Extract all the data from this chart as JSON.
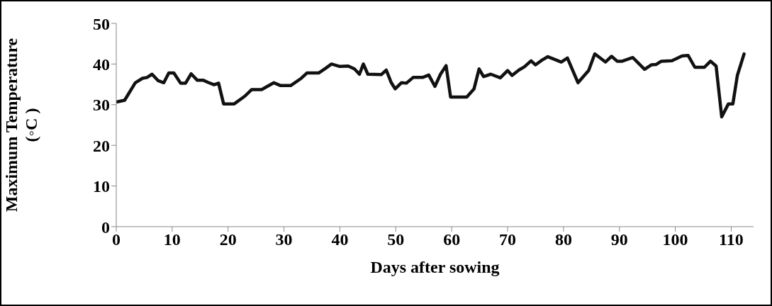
{
  "chart_data": {
    "type": "line",
    "xlabel": "Days after sowing",
    "ylabel": "Maximum Temperature (◦C )",
    "x": [
      0.2,
      1.5,
      3.4,
      4.7,
      5.5,
      6.4,
      7.5,
      8.5,
      9.4,
      10.3,
      11.5,
      12.4,
      13.4,
      14.5,
      15.6,
      16.4,
      17.5,
      18.3,
      19.2,
      21.1,
      23,
      24.2,
      26,
      28.2,
      29.4,
      31.2,
      33.1,
      34.1,
      36.2,
      37.5,
      38.5,
      40,
      41.5,
      42.6,
      43.5,
      44.2,
      45,
      47.4,
      48.3,
      49.2,
      49.9,
      51,
      51.9,
      53.1,
      54.8,
      55.9,
      57,
      58,
      59,
      59.8,
      62.7,
      64,
      64.9,
      65.7,
      67,
      68.7,
      70,
      70.8,
      72,
      73,
      74.2,
      75,
      76.2,
      77.2,
      78.1,
      79.6,
      80.7,
      82.6,
      84.5,
      85.6,
      87.5,
      88.6,
      89.6,
      90.5,
      92.4,
      94.5,
      95.7,
      96.6,
      97.5,
      99.4,
      101.2,
      102.3,
      103.5,
      105.2,
      106.3,
      107.3,
      108.3,
      109.5,
      110.3,
      111.1,
      112.3
    ],
    "series": [
      {
        "color": "#111111",
        "values": [
          30.7,
          31.1,
          35.4,
          36.5,
          36.7,
          37.5,
          35.9,
          35.4,
          37.8,
          37.8,
          35.3,
          35.3,
          37.6,
          36,
          36,
          35.5,
          34.9,
          35.3,
          30.2,
          30.2,
          32.1,
          33.7,
          33.7,
          35.4,
          34.7,
          34.7,
          36.5,
          37.8,
          37.8,
          39,
          40,
          39.4,
          39.5,
          38.8,
          37.5,
          40,
          37.5,
          37.4,
          38.5,
          35.4,
          33.9,
          35.4,
          35.3,
          36.7,
          36.7,
          37.3,
          34.5,
          37.5,
          39.6,
          31.9,
          31.9,
          33.9,
          38.8,
          36.9,
          37.5,
          36.6,
          38.4,
          37.2,
          38.5,
          39.3,
          40.8,
          39.8,
          41,
          41.8,
          41.3,
          40.5,
          41.5,
          35.4,
          38.4,
          42.5,
          40.5,
          41.9,
          40.7,
          40.7,
          41.6,
          38.7,
          39.8,
          39.9,
          40.7,
          40.8,
          42,
          42.1,
          39.2,
          39.2,
          40.7,
          39.5,
          27,
          30.2,
          30.2,
          37.2,
          42.5
        ]
      }
    ],
    "xlim": [
      0,
      114
    ],
    "xticks": [
      0,
      10,
      20,
      30,
      40,
      50,
      60,
      70,
      80,
      90,
      100,
      110
    ],
    "ylim": [
      0,
      50
    ],
    "yticks": [
      0,
      10,
      20,
      30,
      40,
      50
    ],
    "grid": false,
    "legend": false,
    "marker": "none",
    "line_style": "solid"
  }
}
